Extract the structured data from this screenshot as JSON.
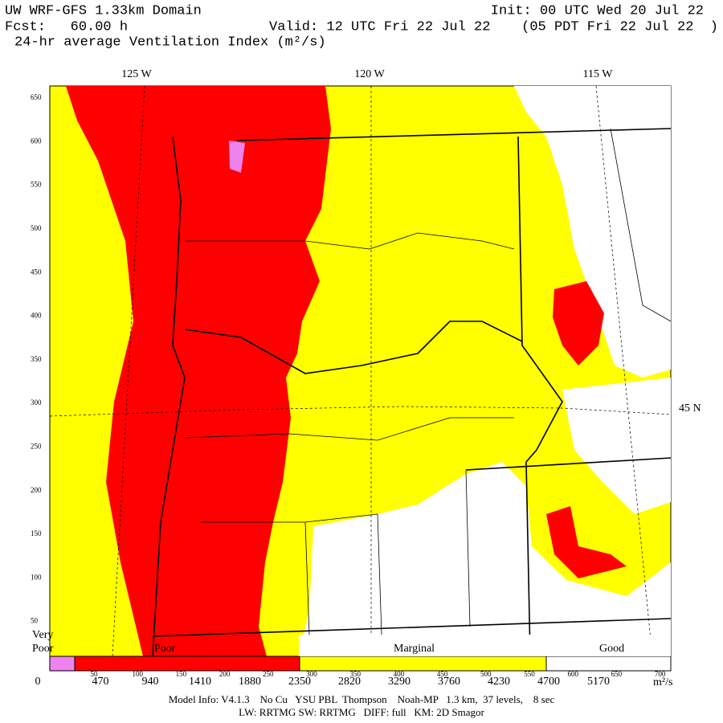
{
  "header": {
    "title": "UW WRF-GFS 1.33km Domain",
    "init": "Init: 00 UTC Wed 20 Jul 22",
    "forecast": "Fcst:   60.00 h",
    "valid": "Valid: 12 UTC Fri 22 Jul 22",
    "local_time": "(05 PDT Fri 22 Jul 22  )",
    "field": "24-hr average Ventilation Index (m²/s)"
  },
  "map": {
    "longitude_labels": [
      "125 W",
      "120 W",
      "115 W"
    ],
    "latitude_label": "45 N",
    "y_axis_labels": [
      650,
      600,
      550,
      500,
      450,
      400,
      350,
      300,
      250,
      200,
      150,
      100,
      50
    ]
  },
  "colorbar": {
    "categories": [
      "Very",
      "Poor",
      "Poor",
      "Marginal",
      "Good"
    ],
    "inner_ticks": [
      50,
      100,
      150,
      200,
      250,
      300,
      350,
      400,
      450,
      500,
      550,
      600,
      650,
      700
    ],
    "ticks": [
      0,
      470,
      940,
      1410,
      1880,
      2350,
      2820,
      3290,
      3760,
      4230,
      4700,
      5170
    ],
    "unit": "m²/s"
  },
  "footer": {
    "line1": "Model Info: V4.1.3    No Cu   YSU PBL  Thompson    Noah-MP   1.3 km,  37 levels,    8 sec",
    "line2": "LW: RRTMG SW: RRTMG   DIFF: full   KM: 2D Smagor"
  }
}
